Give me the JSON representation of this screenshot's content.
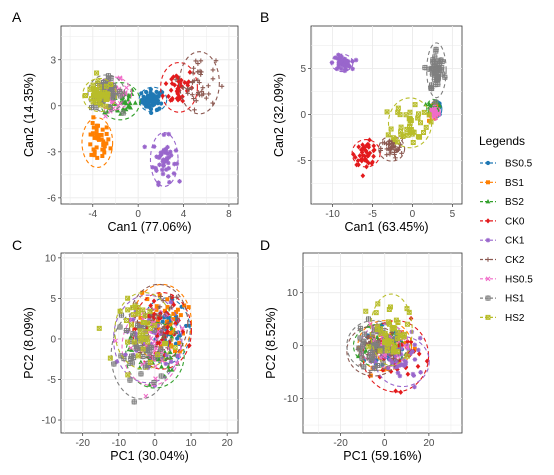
{
  "legend": {
    "title": "Legends",
    "items": [
      {
        "name": "BS0.5",
        "color": "#1f78b4",
        "shape": "circle"
      },
      {
        "name": "BS1",
        "color": "#ff7f00",
        "shape": "square"
      },
      {
        "name": "BS2",
        "color": "#33a02c",
        "shape": "triangle"
      },
      {
        "name": "CK0",
        "color": "#e31a1c",
        "shape": "diamond"
      },
      {
        "name": "CK1",
        "color": "#9966cc",
        "shape": "star"
      },
      {
        "name": "CK2",
        "color": "#8c5a52",
        "shape": "plus"
      },
      {
        "name": "HS0.5",
        "color": "#f06cc8",
        "shape": "cross"
      },
      {
        "name": "HS1",
        "color": "#7f7f7f",
        "shape": "hashsquare"
      },
      {
        "name": "HS2",
        "color": "#b8bd2a",
        "shape": "squarex"
      }
    ]
  },
  "chart_data": [
    {
      "panel": "A",
      "type": "scatter",
      "xlabel": "Can1 (77.06%)",
      "ylabel": "Can2 (14.35%)",
      "xlim": [
        -6.8,
        8.8
      ],
      "ylim": [
        -6.4,
        5.2
      ],
      "xticks": [
        -4,
        0,
        4,
        8
      ],
      "yticks": [
        -6,
        -3,
        0,
        3
      ],
      "grid": true,
      "ellipses": true,
      "groups": [
        {
          "name": "BS0.5",
          "center": [
            1.3,
            0.4
          ],
          "spread": [
            0.9,
            0.6
          ],
          "n": 55
        },
        {
          "name": "BS1",
          "center": [
            -3.6,
            -2.4
          ],
          "spread": [
            1.0,
            1.2
          ],
          "n": 40
        },
        {
          "name": "BS2",
          "center": [
            -1.6,
            0.3
          ],
          "spread": [
            1.3,
            0.9
          ],
          "n": 40
        },
        {
          "name": "CK0",
          "center": [
            3.6,
            1.2
          ],
          "spread": [
            1.2,
            1.2
          ],
          "n": 40
        },
        {
          "name": "CK1",
          "center": [
            2.3,
            -3.5
          ],
          "spread": [
            0.9,
            1.3
          ],
          "n": 45
        },
        {
          "name": "CK2",
          "center": [
            5.4,
            1.5
          ],
          "spread": [
            1.3,
            1.5
          ],
          "n": 40
        },
        {
          "name": "HS0.5",
          "center": [
            -2.2,
            0.8
          ],
          "spread": [
            1.2,
            0.8
          ],
          "n": 40
        },
        {
          "name": "HS1",
          "center": [
            -2.8,
            0.8
          ],
          "spread": [
            1.2,
            0.9
          ],
          "n": 45
        },
        {
          "name": "HS2",
          "center": [
            -3.4,
            0.7
          ],
          "spread": [
            1.1,
            0.8
          ],
          "n": 45
        }
      ]
    },
    {
      "panel": "B",
      "type": "scatter",
      "xlabel": "Can1 (63.45%)",
      "ylabel": "Can2 (32.09%)",
      "xlim": [
        -12.7,
        6.2
      ],
      "ylim": [
        -9.7,
        9.6
      ],
      "xticks": [
        -10,
        -5,
        0,
        5
      ],
      "yticks": [
        -5,
        0,
        5
      ],
      "grid": true,
      "ellipses": true,
      "groups": [
        {
          "name": "BS0.5",
          "center": [
            3.0,
            0.6
          ],
          "spread": [
            0.5,
            0.7
          ],
          "n": 30
        },
        {
          "name": "BS1",
          "center": [
            2.7,
            0.3
          ],
          "spread": [
            0.5,
            0.7
          ],
          "n": 30
        },
        {
          "name": "BS2",
          "center": [
            2.6,
            0.7
          ],
          "spread": [
            0.6,
            0.7
          ],
          "n": 30
        },
        {
          "name": "CK0",
          "center": [
            -5.8,
            -4.2
          ],
          "spread": [
            1.3,
            1.1
          ],
          "n": 45
        },
        {
          "name": "CK1",
          "center": [
            -8.8,
            5.6
          ],
          "spread": [
            1.0,
            0.7
          ],
          "n": 45
        },
        {
          "name": "CK2",
          "center": [
            -2.6,
            -3.7
          ],
          "spread": [
            1.2,
            1.0
          ],
          "n": 40
        },
        {
          "name": "HS0.5",
          "center": [
            2.8,
            0.2
          ],
          "spread": [
            0.5,
            0.6
          ],
          "n": 30
        },
        {
          "name": "HS1",
          "center": [
            3.0,
            4.8
          ],
          "spread": [
            0.9,
            2.2
          ],
          "n": 45
        },
        {
          "name": "HS2",
          "center": [
            -0.3,
            -0.9
          ],
          "spread": [
            2.0,
            2.0
          ],
          "n": 45
        }
      ]
    },
    {
      "panel": "C",
      "type": "scatter",
      "xlabel": "PC1 (30.04%)",
      "ylabel": "PC2 (8.09%)",
      "xlim": [
        -26,
        23
      ],
      "ylim": [
        -11.6,
        10.6
      ],
      "xticks": [
        -20,
        -10,
        0,
        10,
        20
      ],
      "yticks": [
        -10,
        -5,
        0,
        5,
        10
      ],
      "grid": true,
      "ellipses": true,
      "groups": [
        {
          "name": "BS0.5",
          "center": [
            3,
            1
          ],
          "spread": [
            5,
            3
          ],
          "n": 40
        },
        {
          "name": "BS1",
          "center": [
            2,
            2
          ],
          "spread": [
            6,
            3.5
          ],
          "n": 40
        },
        {
          "name": "BS2",
          "center": [
            0,
            -2
          ],
          "spread": [
            6,
            3
          ],
          "n": 40
        },
        {
          "name": "CK0",
          "center": [
            2,
            1
          ],
          "spread": [
            6,
            3.5
          ],
          "n": 40
        },
        {
          "name": "CK1",
          "center": [
            -2,
            0
          ],
          "spread": [
            7,
            4
          ],
          "n": 40
        },
        {
          "name": "CK2",
          "center": [
            1,
            2
          ],
          "spread": [
            6,
            3.5
          ],
          "n": 40
        },
        {
          "name": "HS0.5",
          "center": [
            -1,
            -1
          ],
          "spread": [
            6,
            3.5
          ],
          "n": 40
        },
        {
          "name": "HS1",
          "center": [
            -4,
            -2
          ],
          "spread": [
            6,
            4
          ],
          "n": 40
        },
        {
          "name": "HS2",
          "center": [
            -3,
            1
          ],
          "spread": [
            6,
            3.5
          ],
          "n": 40
        }
      ]
    },
    {
      "panel": "D",
      "type": "scatter",
      "xlabel": "PC1 (59.16%)",
      "ylabel": "PC2 (8.52%)",
      "xlim": [
        -37,
        35
      ],
      "ylim": [
        -16.5,
        17.5
      ],
      "xticks": [
        -20,
        0,
        20
      ],
      "yticks": [
        -10,
        0,
        10
      ],
      "grid": true,
      "ellipses": true,
      "groups": [
        {
          "name": "BS0.5",
          "center": [
            0,
            0
          ],
          "spread": [
            8,
            3
          ],
          "n": 40
        },
        {
          "name": "BS1",
          "center": [
            0,
            0
          ],
          "spread": [
            9,
            3.5
          ],
          "n": 40
        },
        {
          "name": "BS2",
          "center": [
            -2,
            0
          ],
          "spread": [
            9,
            3
          ],
          "n": 40
        },
        {
          "name": "CK0",
          "center": [
            5,
            -2
          ],
          "spread": [
            11,
            5
          ],
          "n": 40
        },
        {
          "name": "CK1",
          "center": [
            8,
            -3
          ],
          "spread": [
            9,
            3.5
          ],
          "n": 45
        },
        {
          "name": "CK2",
          "center": [
            -5,
            -1
          ],
          "spread": [
            9,
            3.5
          ],
          "n": 40
        },
        {
          "name": "HS0.5",
          "center": [
            0,
            0
          ],
          "spread": [
            8,
            3
          ],
          "n": 40
        },
        {
          "name": "HS1",
          "center": [
            -5,
            0
          ],
          "spread": [
            9,
            3.5
          ],
          "n": 40
        },
        {
          "name": "HS2",
          "center": [
            3,
            3
          ],
          "spread": [
            7,
            5
          ],
          "n": 45
        }
      ]
    }
  ]
}
